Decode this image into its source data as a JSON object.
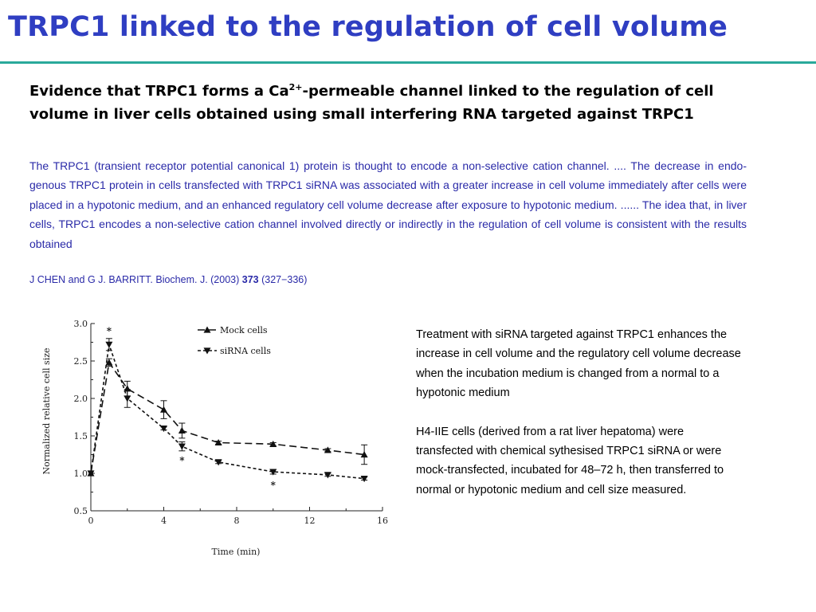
{
  "title": "TRPC1 linked to the regulation of cell volume",
  "heading": {
    "part1": "Evidence that TRPC1 forms a Ca",
    "sup": "2+",
    "part2": "-permeable channel linked to the regulation of cell volume in liver cells obtained using small interfering RNA targeted against TRPC1"
  },
  "abstract": "The TRPC1 (transient receptor potential canonical 1) protein is thought to encode a non-selective cation channel. .... The decrease in endo-genous TRPC1 protein in cells transfected with TRPC1 siRNA was associated with a greater increase in cell volume immediately after cells were placed in a hypotonic medium, and an enhanced regulatory cell volume decrease after exposure to hypotonic medium. ...... The idea that, in liver cells, TRPC1 encodes a non-selective cation channel involved directly or indirectly in the regulation of cell volume is consistent with the results obtained",
  "citation": {
    "authors": "J CHEN and G J. BARRITT. Biochem. J. (2003) ",
    "volume": "373",
    "pages": " (327−336)"
  },
  "caption": {
    "p1": "Treatment with siRNA targeted against TRPC1 enhances the increase in cell volume and the regulatory cell volume decrease when the incubation medium is changed from a normal to a hypotonic medium",
    "p2": "H4-IIE cells (derived from a rat liver hepatoma) were transfected with chemical sythesised TRPC1 siRNA or were mock-transfected, incubated for 48–72 h, then transferred to normal or hypotonic medium and cell size measured."
  },
  "chart_data": {
    "type": "line",
    "xlabel": "Time (min)",
    "ylabel": "Normalized relative cell size",
    "xlim": [
      0,
      16
    ],
    "ylim": [
      0.5,
      3.0
    ],
    "x_ticks": [
      "0",
      "4",
      "8",
      "12",
      "16"
    ],
    "y_ticks": [
      "0.5",
      "1.0",
      "1.5",
      "2.0",
      "2.5",
      "3.0"
    ],
    "legend_position": "top-right",
    "series": [
      {
        "name": "Mock cells",
        "marker": "triangle-up",
        "line": "long-dash",
        "points": [
          [
            0,
            1.0
          ],
          [
            1,
            2.48
          ],
          [
            2,
            2.13
          ],
          [
            4,
            1.85
          ],
          [
            5,
            1.57
          ],
          [
            7,
            1.41
          ],
          [
            10,
            1.39
          ],
          [
            13,
            1.31
          ],
          [
            15,
            1.25
          ]
        ],
        "errors": [
          0,
          0.05,
          0.1,
          0.12,
          0.1,
          0.02,
          0.02,
          0.02,
          0.13
        ]
      },
      {
        "name": "siRNA cells",
        "marker": "triangle-down",
        "line": "short-dash",
        "points": [
          [
            0,
            1.0
          ],
          [
            1,
            2.72
          ],
          [
            2,
            2.0
          ],
          [
            4,
            1.6
          ],
          [
            5,
            1.36
          ],
          [
            7,
            1.15
          ],
          [
            10,
            1.02
          ],
          [
            13,
            0.98
          ],
          [
            15,
            0.93
          ]
        ],
        "errors": [
          0,
          0.08,
          0.12,
          0.02,
          0.06,
          0.02,
          0.03,
          0.02,
          0.02
        ]
      }
    ],
    "annotations": [
      {
        "text": "*",
        "x": 1,
        "y": 2.9
      },
      {
        "text": "*",
        "x": 5,
        "y": 1.17
      },
      {
        "text": "*",
        "x": 10,
        "y": 0.84
      }
    ]
  }
}
